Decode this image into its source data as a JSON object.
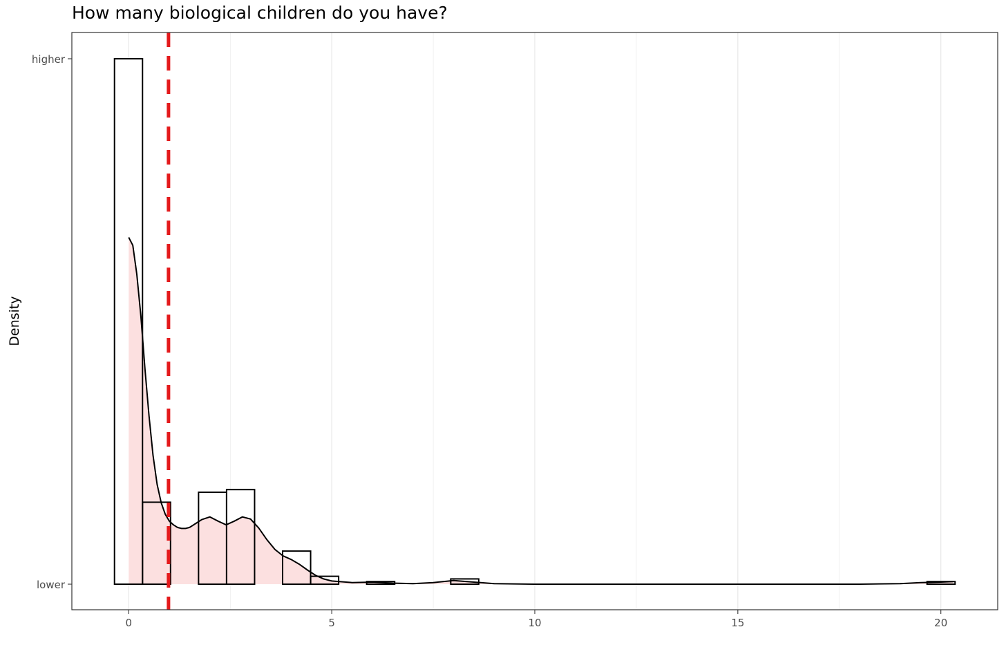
{
  "chart_data": {
    "type": "histogram",
    "title": "How many biological children do you have?",
    "xlabel": "",
    "ylabel": "Density",
    "xlim": [
      -1.4,
      21.4
    ],
    "x_ticks": [
      0,
      5,
      10,
      15,
      20
    ],
    "y_tick_labels": [
      "lower",
      "higher"
    ],
    "bin_width": 0.69,
    "bins": [
      {
        "x0": -0.35,
        "x1": 0.34,
        "value": 1.0
      },
      {
        "x0": 0.34,
        "x1": 1.03,
        "value": 0.156
      },
      {
        "x0": 1.72,
        "x1": 2.41,
        "value": 0.175
      },
      {
        "x0": 2.41,
        "x1": 3.1,
        "value": 0.18
      },
      {
        "x0": 3.79,
        "x1": 4.48,
        "value": 0.063
      },
      {
        "x0": 4.48,
        "x1": 5.17,
        "value": 0.015
      },
      {
        "x0": 5.86,
        "x1": 6.55,
        "value": 0.005
      },
      {
        "x0": 7.93,
        "x1": 8.62,
        "value": 0.01
      },
      {
        "x0": 19.66,
        "x1": 20.35,
        "value": 0.005
      }
    ],
    "density_curve": {
      "x": [
        0,
        0.1,
        0.2,
        0.3,
        0.4,
        0.5,
        0.6,
        0.7,
        0.8,
        0.9,
        1.0,
        1.1,
        1.2,
        1.3,
        1.4,
        1.5,
        1.6,
        1.8,
        2.0,
        2.2,
        2.4,
        2.6,
        2.8,
        3.0,
        3.2,
        3.4,
        3.6,
        3.8,
        4.0,
        4.2,
        4.4,
        4.6,
        4.8,
        5.0,
        5.5,
        6.0,
        6.5,
        7.0,
        7.5,
        8.0,
        8.5,
        9.0,
        10.0,
        12.0,
        15.0,
        18.0,
        19.0,
        19.5,
        20.0,
        20.3
      ],
      "y": [
        0.66,
        0.645,
        0.59,
        0.51,
        0.41,
        0.32,
        0.245,
        0.19,
        0.155,
        0.133,
        0.12,
        0.113,
        0.108,
        0.106,
        0.106,
        0.108,
        0.113,
        0.123,
        0.128,
        0.12,
        0.113,
        0.12,
        0.128,
        0.124,
        0.107,
        0.085,
        0.066,
        0.054,
        0.047,
        0.038,
        0.027,
        0.017,
        0.01,
        0.006,
        0.003,
        0.004,
        0.002,
        0.001,
        0.003,
        0.007,
        0.004,
        0.001,
        0.0,
        0.0,
        0.0,
        0.0,
        0.001,
        0.003,
        0.004,
        0.005
      ]
    },
    "reference_line": {
      "x": 0.98,
      "color": "#e41a1c",
      "style": "dashed"
    },
    "colors": {
      "density_fill": "#fcdede",
      "bar_fill": "#ffffff",
      "bar_stroke": "#000000",
      "grid": "#e5e5e5"
    },
    "grid": true,
    "legend": "none"
  }
}
